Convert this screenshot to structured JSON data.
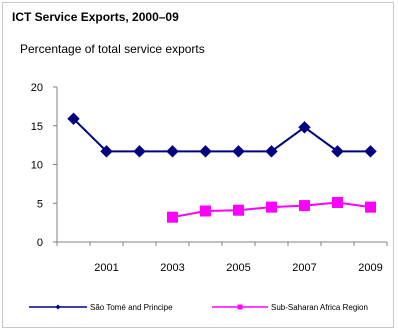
{
  "chart_data": {
    "type": "line",
    "title": "ICT Service Exports, 2000–09",
    "subtitle": "Percentage of total service exports",
    "x": [
      2000,
      2001,
      2002,
      2003,
      2004,
      2005,
      2006,
      2007,
      2008,
      2009
    ],
    "x_tick_labels": [
      "2001",
      "2003",
      "2005",
      "2007",
      "2009"
    ],
    "y_ticks": [
      "0",
      "5",
      "10",
      "15",
      "20"
    ],
    "ylim": [
      0,
      20
    ],
    "grid": false,
    "legend_position": "bottom",
    "series": [
      {
        "name": "São Tomé and Principe",
        "color": "#000080",
        "marker": "diamond",
        "values": [
          15.9,
          11.7,
          11.7,
          11.7,
          11.7,
          11.7,
          11.7,
          14.8,
          11.7,
          11.7
        ]
      },
      {
        "name": "Sub-Saharan Africa Region",
        "color": "#ff00ff",
        "marker": "square",
        "values": [
          null,
          null,
          null,
          3.2,
          4.0,
          4.1,
          4.5,
          4.7,
          5.1,
          4.5
        ]
      }
    ]
  }
}
